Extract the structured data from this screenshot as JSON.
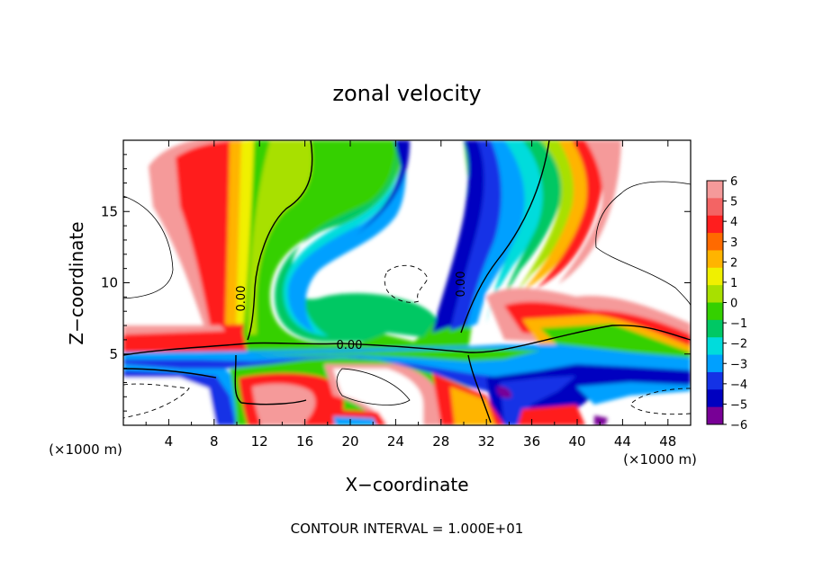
{
  "chart_data": {
    "type": "heatmap",
    "title": "zonal velocity",
    "xlabel": "X−coordinate",
    "ylabel": "Z−coordinate",
    "x_unit_left": "(×1000 m)",
    "x_unit_right": "(×1000 m)",
    "footer": "CONTOUR INTERVAL = 1.000E+01",
    "xlim": [
      0,
      50
    ],
    "ylim": [
      0,
      20
    ],
    "x_ticks": [
      4,
      8,
      12,
      16,
      20,
      24,
      28,
      32,
      36,
      40,
      44,
      48
    ],
    "y_ticks": [
      5,
      10,
      15
    ],
    "contour_labels": [
      "0.00",
      "0.00",
      "0.00"
    ],
    "colorbar": {
      "ticks": [
        "6",
        "5",
        "4",
        "3",
        "2",
        "1",
        "0",
        "−1",
        "−2",
        "−3",
        "−4",
        "−5",
        "−6"
      ],
      "colors": [
        "#f59a9a",
        "#f36464",
        "#ff1e1e",
        "#ff6a00",
        "#ffb400",
        "#f0f000",
        "#a8e000",
        "#34d000",
        "#00c864",
        "#00dcdc",
        "#00a0ff",
        "#1432e6",
        "#0000c0",
        "#780096"
      ]
    }
  }
}
